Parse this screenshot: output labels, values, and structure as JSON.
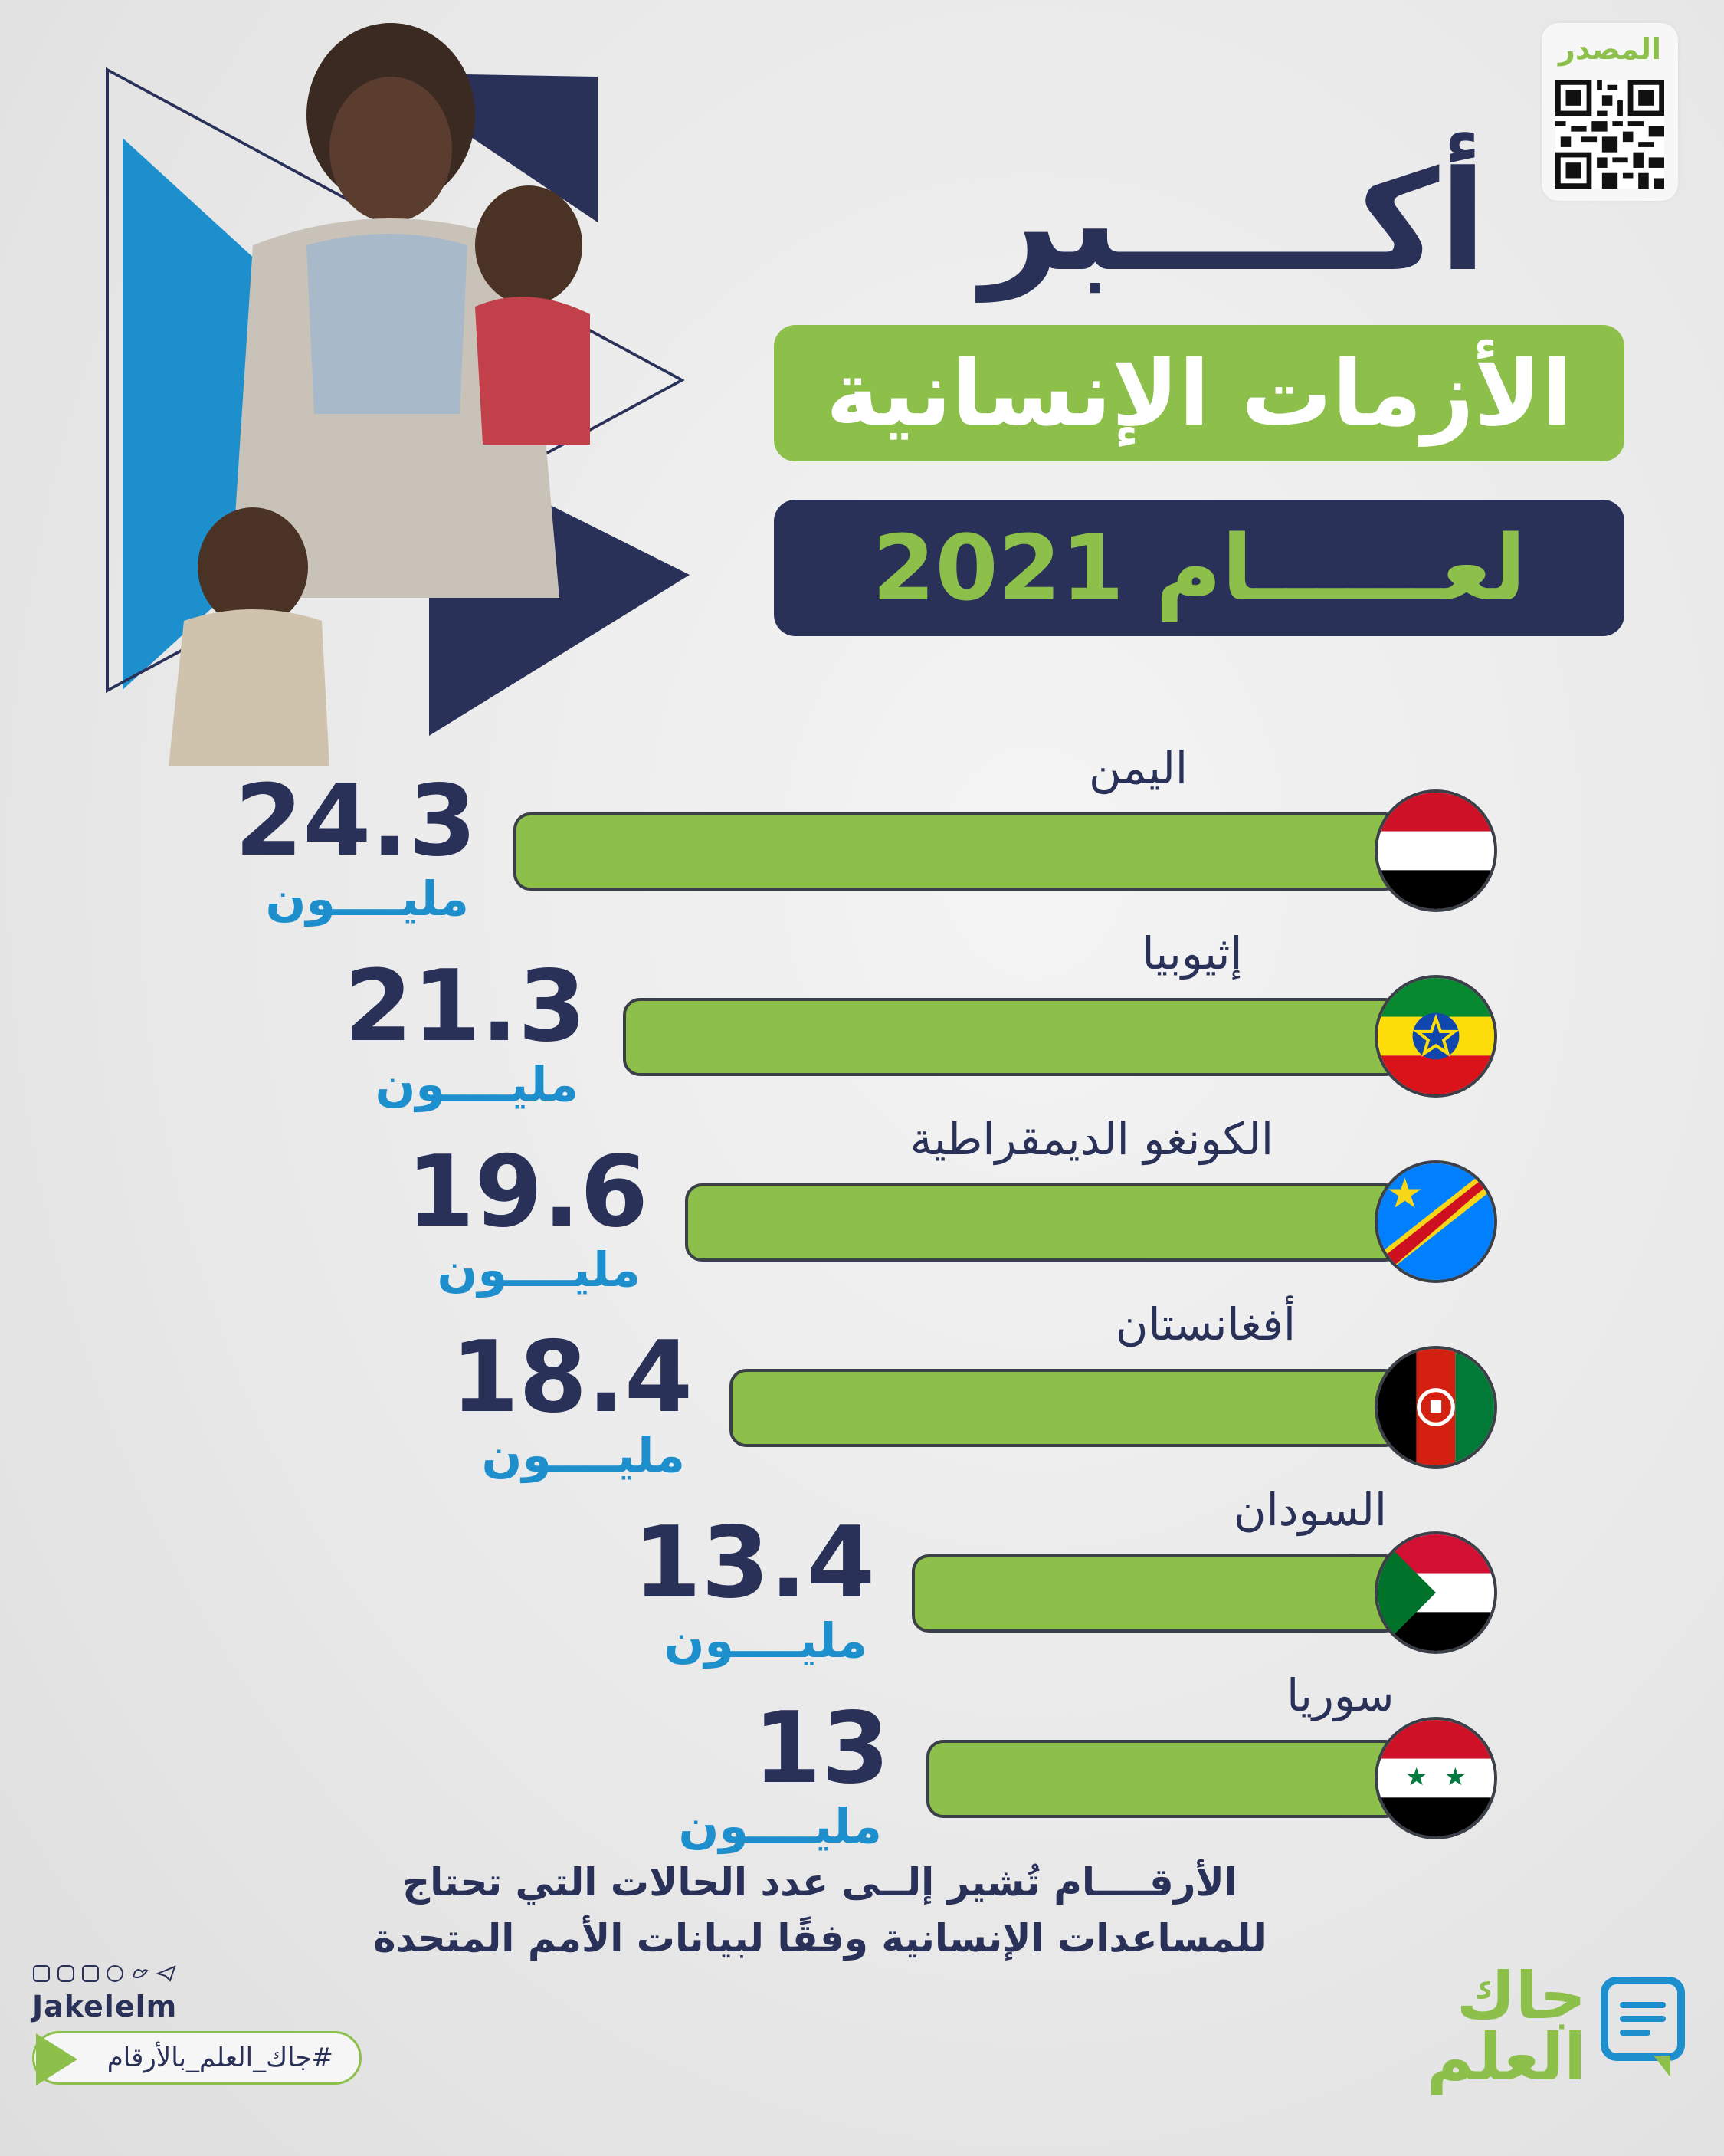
{
  "source": {
    "label": "المصدر"
  },
  "title": {
    "line1": "أكـــــبر",
    "line2": "الأزمات الإنسانية",
    "line3": "لعــــــام 2021"
  },
  "chart_data": {
    "type": "bar",
    "orientation": "horizontal",
    "categories": [
      "اليمن",
      "إثيوبيا",
      "الكونغو الديمقراطية",
      "أفغانستان",
      "السودان",
      "سوريا"
    ],
    "values": [
      24.3,
      21.3,
      19.6,
      18.4,
      13.4,
      13
    ],
    "value_labels": [
      "24.3",
      "21.3",
      "19.6",
      "18.4",
      "13.4",
      "13"
    ],
    "unit": "مليــــون",
    "title": "أكبر الأزمات الإنسانية لعام 2021",
    "bar_color": "#8cc04b"
  },
  "footnote": {
    "line1": "الأرقــــام تُشير إلــى عدد الحالات التي تحتاج",
    "line2": "للمساعدات الإنسانية وفقًا لبيانات الأمم المتحدة"
  },
  "footer": {
    "handle": "Jakelelm",
    "hashtag": "#جاك_العلم_بالأرقام",
    "logo_line1": "جاك",
    "logo_line2": "العلم",
    "social_icons": [
      "facebook-icon",
      "instagram-icon",
      "youtube-icon",
      "snapchat-icon",
      "twitter-icon",
      "telegram-icon"
    ]
  },
  "colors": {
    "navy": "#2a3158",
    "green": "#8cc04b",
    "blue": "#1e8fcd"
  }
}
